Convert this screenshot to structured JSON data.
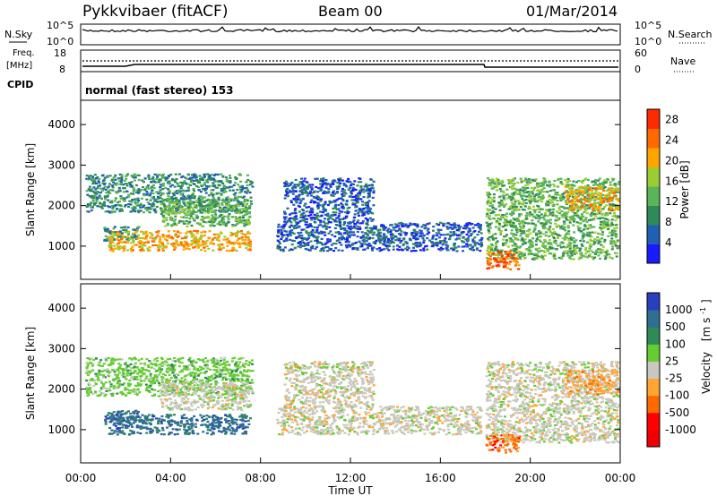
{
  "header": {
    "radar": "Pykkvibaer (fitACF)",
    "beam": "Beam 00",
    "date": "01/Mar/2014"
  },
  "nsky_panel": {
    "left_label": "N.Sky",
    "right_label": "N.Search",
    "left_ticks": [
      "10^5",
      "10^0"
    ],
    "right_ticks": [
      "10^5",
      "10^0"
    ]
  },
  "freq_panel": {
    "left_label_1": "Freq.",
    "left_label_2": "[MHz]",
    "right_label": "Nave",
    "left_ticks": [
      "18",
      "8"
    ],
    "right_ticks": [
      "60",
      "0"
    ]
  },
  "cpid_panel": {
    "label": "CPID",
    "mode": "normal (fast stereo) 153"
  },
  "chart_data": [
    {
      "type": "heatmap",
      "quantity": "Power",
      "ylabel": "Slant Range [km]",
      "xlabel": "Time UT",
      "x_ticks": [
        "00:00",
        "04:00",
        "08:00",
        "12:00",
        "16:00",
        "20:00",
        "00:00"
      ],
      "xlim_hours": [
        0,
        24
      ],
      "y_ticks": [
        1000,
        2000,
        3000,
        4000
      ],
      "ylim_km": [
        180,
        4600
      ],
      "colorbar": {
        "label": "Power [dB]",
        "ticks": [
          4,
          8,
          12,
          16,
          20,
          24,
          28
        ],
        "range": [
          0,
          30
        ],
        "colors": [
          "#1a1aff",
          "#1f5fb4",
          "#2e8b57",
          "#5ab45a",
          "#9acd32",
          "#ffa500",
          "#ff6a00",
          "#ff2a00"
        ]
      }
    },
    {
      "type": "heatmap",
      "quantity": "Velocity",
      "ylabel": "Slant Range [km]",
      "xlabel": "Time UT",
      "x_ticks": [
        "00:00",
        "04:00",
        "08:00",
        "12:00",
        "16:00",
        "20:00",
        "00:00"
      ],
      "xlim_hours": [
        0,
        24
      ],
      "y_ticks": [
        1000,
        2000,
        3000,
        4000
      ],
      "ylim_km": [
        180,
        4600
      ],
      "colorbar": {
        "label": "Velocity",
        "units": "[m s",
        "units_exp": "-1",
        "ticks": [
          "1000",
          "500",
          "100",
          "25",
          "-25",
          "-100",
          "-500",
          "-1000"
        ],
        "colors": [
          "#2a3fbf",
          "#2f6f8f",
          "#2e8b57",
          "#66cc33",
          "#c8c8c0",
          "#ffa533",
          "#ff6a00",
          "#ff0000",
          "#ee0000"
        ]
      }
    }
  ],
  "echo_regions": [
    {
      "t0": 0.2,
      "t1": 7.6,
      "r0": 1850,
      "r1": 2800,
      "level": 2,
      "vel": 3
    },
    {
      "t0": 1.0,
      "t1": 2.6,
      "r0": 1150,
      "r1": 1500,
      "level": 2,
      "vel": 1
    },
    {
      "t0": 1.2,
      "t1": 7.5,
      "r0": 900,
      "r1": 1400,
      "level": 5,
      "vel": 1
    },
    {
      "t0": 3.5,
      "t1": 7.5,
      "r0": 1500,
      "r1": 2200,
      "level": 3,
      "vel": 4
    },
    {
      "t0": 8.7,
      "t1": 17.8,
      "r0": 900,
      "r1": 1600,
      "level": 1,
      "vel": 4
    },
    {
      "t0": 9.0,
      "t1": 13.0,
      "r0": 1600,
      "r1": 2700,
      "level": 1,
      "vel": 4
    },
    {
      "t0": 18.0,
      "t1": 23.9,
      "r0": 700,
      "r1": 2700,
      "level": 3,
      "vel": 4
    },
    {
      "t0": 21.5,
      "t1": 23.9,
      "r0": 1900,
      "r1": 2500,
      "level": 5,
      "vel": 5
    },
    {
      "t0": 18.0,
      "t1": 19.5,
      "r0": 450,
      "r1": 900,
      "level": 6,
      "vel": 6
    }
  ]
}
